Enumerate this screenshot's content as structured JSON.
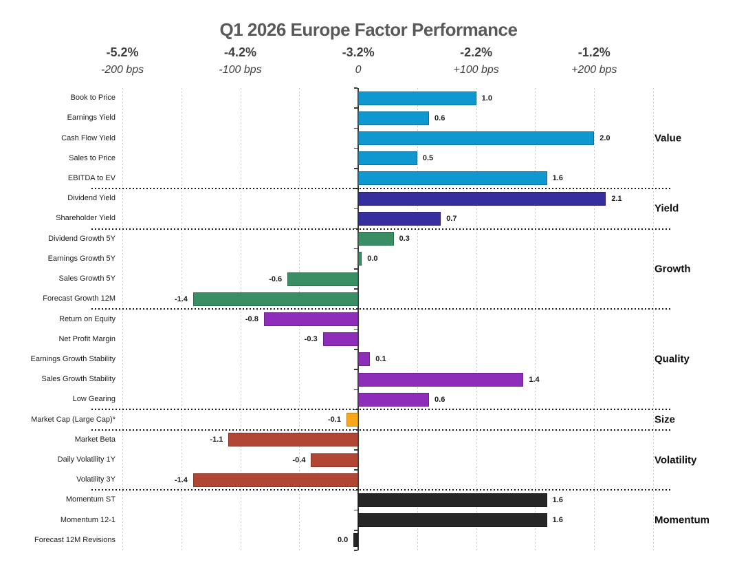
{
  "title": "Q1 2026 Europe Factor Performance",
  "chart_data": {
    "type": "bar",
    "orientation": "horizontal",
    "title": "Q1 2026 Europe Factor Performance",
    "x_axis": {
      "top_tick_labels": [
        "-5.2%",
        "-4.2%",
        "-3.2%",
        "-2.2%",
        "-1.2%"
      ],
      "bottom_tick_labels": [
        "-200 bps",
        "-100 bps",
        "0",
        "+100 bps",
        "+200 bps"
      ],
      "tick_values_bps": [
        -200,
        -100,
        0,
        100,
        200
      ],
      "range_bps": [
        -200,
        250
      ],
      "gridline_step_bps": 50,
      "grid": true
    },
    "value_unit": "100 bps per 1.0",
    "groups": [
      {
        "name": "Value",
        "color": "#0f97cf",
        "factors": [
          {
            "label": "Book to Price",
            "value": 1.0,
            "value_label": "1.0"
          },
          {
            "label": "Earnings Yield",
            "value": 0.6,
            "value_label": "0.6"
          },
          {
            "label": "Cash Flow Yield",
            "value": 2.0,
            "value_label": "2.0"
          },
          {
            "label": "Sales to Price",
            "value": 0.5,
            "value_label": "0.5"
          },
          {
            "label": "EBITDA to EV",
            "value": 1.6,
            "value_label": "1.6"
          }
        ]
      },
      {
        "name": "Yield",
        "color": "#372e9d",
        "factors": [
          {
            "label": "Dividend Yield",
            "value": 2.1,
            "value_label": "2.1"
          },
          {
            "label": "Shareholder Yield",
            "value": 0.7,
            "value_label": "0.7"
          }
        ]
      },
      {
        "name": "Growth",
        "color": "#398e63",
        "factors": [
          {
            "label": "Dividend Growth 5Y",
            "value": 0.3,
            "value_label": "0.3"
          },
          {
            "label": "Earnings Growth 5Y",
            "value": 0.0,
            "value_label": "0.0",
            "bar_value": 0.03
          },
          {
            "label": "Sales Growth 5Y",
            "value": -0.6,
            "value_label": "-0.6"
          },
          {
            "label": "Forecast Growth 12M",
            "value": -1.4,
            "value_label": "-1.4"
          }
        ]
      },
      {
        "name": "Quality",
        "color": "#8e2dba",
        "factors": [
          {
            "label": "Return on Equity",
            "value": -0.8,
            "value_label": "-0.8"
          },
          {
            "label": "Net Profit Margin",
            "value": -0.3,
            "value_label": "-0.3"
          },
          {
            "label": "Earnings Growth Stability",
            "value": 0.1,
            "value_label": "0.1"
          },
          {
            "label": "Sales Growth Stability",
            "value": 1.4,
            "value_label": "1.4"
          },
          {
            "label": "Low Gearing",
            "value": 0.6,
            "value_label": "0.6"
          }
        ]
      },
      {
        "name": "Size",
        "color": "#f9a61a",
        "factors": [
          {
            "label": "Market Cap (Large Cap)*",
            "value": -0.1,
            "value_label": "-0.1"
          }
        ]
      },
      {
        "name": "Volatility",
        "color": "#b24635",
        "factors": [
          {
            "label": "Market Beta",
            "value": -1.1,
            "value_label": "-1.1"
          },
          {
            "label": "Daily Volatility 1Y",
            "value": -0.4,
            "value_label": "-0.4"
          },
          {
            "label": "Volatility 3Y",
            "value": -1.4,
            "value_label": "-1.4"
          }
        ]
      },
      {
        "name": "Momentum",
        "color": "#262626",
        "factors": [
          {
            "label": "Momentum ST",
            "value": 1.6,
            "value_label": "1.6"
          },
          {
            "label": "Momentum 12-1",
            "value": 1.6,
            "value_label": "1.6"
          },
          {
            "label": "Forecast 12M Revisions",
            "value": 0.0,
            "value_label": "0.0",
            "bar_value": -0.04
          }
        ]
      }
    ]
  },
  "colors": {
    "title_text": "#595959",
    "axis_text": "#404040",
    "gridline": "#c9c9c9",
    "axis_line": "#3a3a3a",
    "separator": "#1a1a1a",
    "label_text": "#1a1a1a",
    "background": "#ffffff"
  }
}
